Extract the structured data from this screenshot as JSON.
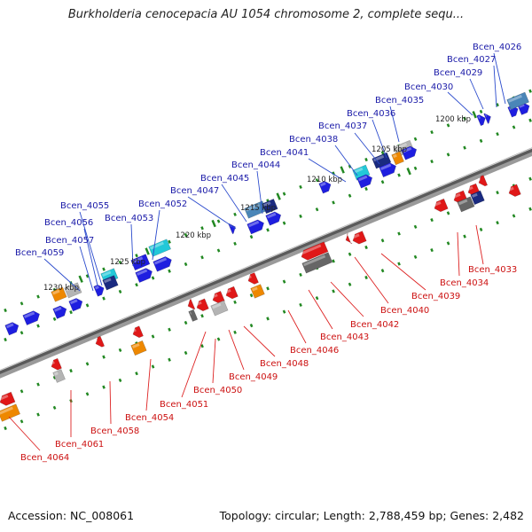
{
  "title": "Burkholderia cenocepacia AU 1054 chromosome 2, complete sequ...",
  "footer": {
    "accession": "Accession: NC_008061",
    "info": "Topology: circular; Length: 2,788,459 bp; Genes: 2,482"
  },
  "colors": {
    "backbone": "#777777",
    "tick": "#228822",
    "top_label": "#1a1aa8",
    "bottom_label": "#cc1111",
    "gene_blue": "#1e1ee0",
    "gene_red": "#e01818",
    "gene_orange": "#ee8800",
    "gene_cyan": "#22c8d8",
    "gene_steel": "#4a86b8",
    "gene_navy": "#1a2a80",
    "gene_gray": "#b4b4b4",
    "gene_darkgray": "#666666"
  },
  "scale_labels": [
    "1200 kbp",
    "1205 kbp",
    "1210 kbp",
    "1215 kbp",
    "1220 kbp",
    "1225 kbp",
    "1230 kbp"
  ],
  "top_labels": [
    "Bcen_4026",
    "Bcen_4027",
    "Bcen_4029",
    "Bcen_4030",
    "Bcen_4035",
    "Bcen_4036",
    "Bcen_4037",
    "Bcen_4038",
    "Bcen_4041",
    "Bcen_4044",
    "Bcen_4045",
    "Bcen_4047",
    "Bcen_4052",
    "Bcen_4053",
    "Bcen_4055",
    "Bcen_4056",
    "Bcen_4057",
    "Bcen_4059"
  ],
  "bottom_labels": [
    "Bcen_4033",
    "Bcen_4034",
    "Bcen_4039",
    "Bcen_4040",
    "Bcen_4042",
    "Bcen_4043",
    "Bcen_4046",
    "Bcen_4048",
    "Bcen_4049",
    "Bcen_4050",
    "Bcen_4051",
    "Bcen_4054",
    "Bcen_4058",
    "Bcen_4061",
    "Bcen_4064"
  ]
}
